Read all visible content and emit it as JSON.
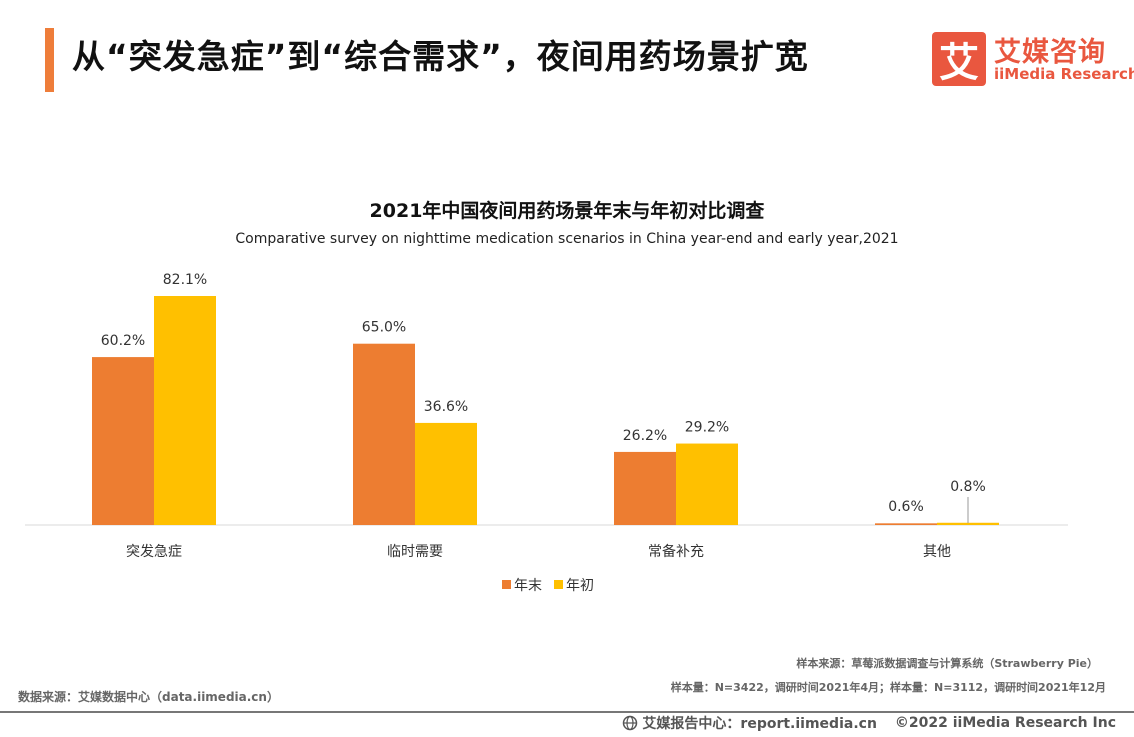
{
  "header": {
    "title": "从“突发急症”到“综合需求”，夜间用药场景扩宽"
  },
  "logo": {
    "mark": "艾",
    "cn": "艾媒咨询",
    "en": "iiMedia Research"
  },
  "colors": {
    "accent": "#ee7d3a",
    "series_end": "#ed7d31",
    "series_start": "#ffc000",
    "brand": "#e9573f"
  },
  "chart_data": {
    "type": "bar",
    "title": "2021年中国夜间用药场景年末与年初对比调查",
    "subtitle": "Comparative survey on nighttime medication scenarios in China year-end and early year,2021",
    "categories": [
      "突发急症",
      "临时需要",
      "常备补充",
      "其他"
    ],
    "series": [
      {
        "name": "年末",
        "values": [
          60.2,
          65.0,
          26.2,
          0.6
        ],
        "labels": [
          "60.2%",
          "65.0%",
          "26.2%",
          "0.6%"
        ]
      },
      {
        "name": "年初",
        "values": [
          82.1,
          36.6,
          29.2,
          0.8
        ],
        "labels": [
          "82.1%",
          "36.6%",
          "29.2%",
          "0.8%"
        ]
      }
    ],
    "ylim": [
      0,
      100
    ],
    "grid": false,
    "legend": "bottom-center"
  },
  "sources": {
    "data_source": "数据来源：艾媒数据中心（data.iimedia.cn）",
    "sample_source": "样本来源：草莓派数据调查与计算系统（Strawberry Pie）",
    "sample_size": "样本量：N=3422，调研时间2021年4月；样本量：N=3112，调研时间2021年12月"
  },
  "footer": {
    "center": "艾媒报告中心：report.iimedia.cn",
    "copyright": "©2022  iiMedia Research Inc"
  }
}
